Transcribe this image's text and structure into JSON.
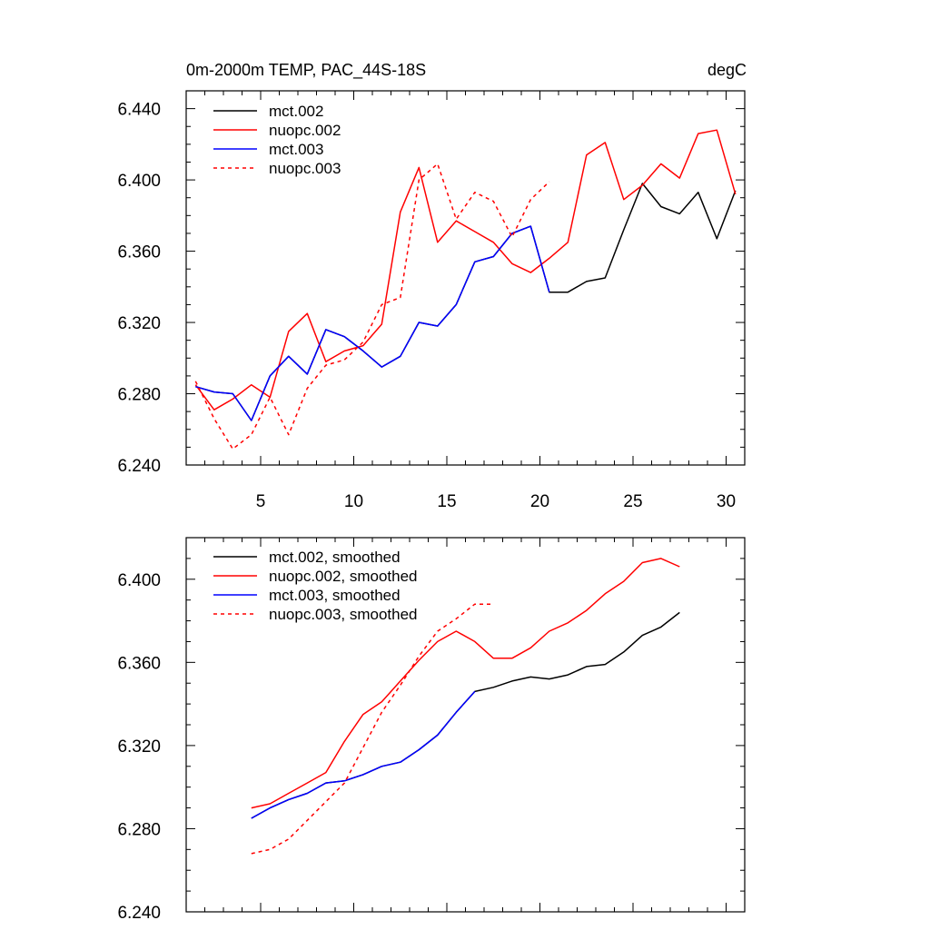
{
  "chart_data": [
    {
      "type": "line",
      "title": "0m-2000m TEMP, PAC_44S-18S",
      "units": "degC",
      "xlim": [
        1,
        31
      ],
      "ylim": [
        6.24,
        6.45
      ],
      "x_ticks": [
        5,
        10,
        15,
        20,
        25,
        30
      ],
      "y_ticks": [
        6.24,
        6.28,
        6.32,
        6.36,
        6.4,
        6.44
      ],
      "y_tick_labels": [
        "6.240",
        "6.280",
        "6.320",
        "6.360",
        "6.400",
        "6.440"
      ],
      "grid": false,
      "legend_position": "top-left",
      "series": [
        {
          "name": "mct.002",
          "color": "#000000",
          "dash": false,
          "x": [
            1.5,
            2.5,
            3.5,
            4.5,
            5.5,
            6.5,
            7.5,
            8.5,
            9.5,
            10.5,
            11.5,
            12.5,
            13.5,
            14.5,
            15.5,
            16.5,
            17.5,
            18.5,
            19.5,
            20.5,
            21.5,
            22.5,
            23.5,
            24.5,
            25.5,
            26.5,
            27.5,
            28.5,
            29.5,
            30.5
          ],
          "y": [
            6.284,
            6.281,
            6.28,
            6.265,
            6.29,
            6.301,
            6.291,
            6.316,
            6.312,
            6.304,
            6.295,
            6.301,
            6.32,
            6.318,
            6.33,
            6.354,
            6.357,
            6.37,
            6.374,
            6.337,
            6.337,
            6.343,
            6.345,
            6.372,
            6.398,
            6.385,
            6.381,
            6.393,
            6.367,
            6.394
          ]
        },
        {
          "name": "nuopc.002",
          "color": "#ff0000",
          "dash": false,
          "x": [
            1.5,
            2.5,
            3.5,
            4.5,
            5.5,
            6.5,
            7.5,
            8.5,
            9.5,
            10.5,
            11.5,
            12.5,
            13.5,
            14.5,
            15.5,
            16.5,
            17.5,
            18.5,
            19.5,
            20.5,
            21.5,
            22.5,
            23.5,
            24.5,
            25.5,
            26.5,
            27.5,
            28.5,
            29.5,
            30.5
          ],
          "y": [
            6.285,
            6.271,
            6.277,
            6.285,
            6.278,
            6.315,
            6.325,
            6.298,
            6.304,
            6.307,
            6.319,
            6.382,
            6.407,
            6.365,
            6.377,
            6.371,
            6.365,
            6.353,
            6.348,
            6.356,
            6.365,
            6.414,
            6.421,
            6.389,
            6.397,
            6.409,
            6.401,
            6.426,
            6.428,
            6.392
          ]
        },
        {
          "name": "mct.003",
          "color": "#0000ff",
          "dash": false,
          "x": [
            1.5,
            2.5,
            3.5,
            4.5,
            5.5,
            6.5,
            7.5,
            8.5,
            9.5,
            10.5,
            11.5,
            12.5,
            13.5,
            14.5,
            15.5,
            16.5,
            17.5,
            18.5,
            19.5,
            20.5
          ],
          "y": [
            6.284,
            6.281,
            6.28,
            6.265,
            6.29,
            6.301,
            6.291,
            6.316,
            6.312,
            6.304,
            6.295,
            6.301,
            6.32,
            6.318,
            6.33,
            6.354,
            6.357,
            6.37,
            6.374,
            6.337
          ]
        },
        {
          "name": "nuopc.003",
          "color": "#ff0000",
          "dash": true,
          "x": [
            1.5,
            2.5,
            3.5,
            4.5,
            5.5,
            6.5,
            7.5,
            8.5,
            9.5,
            10.5,
            11.5,
            12.5,
            13.5,
            14.5,
            15.5,
            16.5,
            17.5,
            18.5,
            19.5,
            20.5
          ],
          "y": [
            6.287,
            6.266,
            6.249,
            6.257,
            6.278,
            6.257,
            6.283,
            6.296,
            6.299,
            6.309,
            6.33,
            6.334,
            6.4,
            6.409,
            6.378,
            6.393,
            6.388,
            6.368,
            6.389,
            6.399
          ]
        }
      ]
    },
    {
      "type": "line",
      "title": "",
      "xlim": [
        1,
        31
      ],
      "ylim": [
        6.24,
        6.42
      ],
      "x_ticks": [
        5,
        10,
        15,
        20,
        25,
        30
      ],
      "y_ticks": [
        6.24,
        6.28,
        6.32,
        6.36,
        6.4
      ],
      "y_tick_labels": [
        "6.240",
        "6.280",
        "6.320",
        "6.360",
        "6.400"
      ],
      "grid": false,
      "legend_position": "top-left",
      "series": [
        {
          "name": "mct.002, smoothed",
          "color": "#000000",
          "dash": false,
          "x": [
            4.5,
            5.5,
            6.5,
            7.5,
            8.5,
            9.5,
            10.5,
            11.5,
            12.5,
            13.5,
            14.5,
            15.5,
            16.5,
            17.5,
            18.5,
            19.5,
            20.5,
            21.5,
            22.5,
            23.5,
            24.5,
            25.5,
            26.5,
            27.5
          ],
          "y": [
            6.285,
            6.29,
            6.294,
            6.297,
            6.302,
            6.303,
            6.306,
            6.31,
            6.312,
            6.318,
            6.325,
            6.336,
            6.346,
            6.348,
            6.351,
            6.353,
            6.352,
            6.354,
            6.358,
            6.359,
            6.365,
            6.373,
            6.377,
            6.384
          ]
        },
        {
          "name": "nuopc.002, smoothed",
          "color": "#ff0000",
          "dash": false,
          "x": [
            4.5,
            5.5,
            6.5,
            7.5,
            8.5,
            9.5,
            10.5,
            11.5,
            12.5,
            13.5,
            14.5,
            15.5,
            16.5,
            17.5,
            18.5,
            19.5,
            20.5,
            21.5,
            22.5,
            23.5,
            24.5,
            25.5,
            26.5,
            27.5
          ],
          "y": [
            6.29,
            6.292,
            6.297,
            6.302,
            6.307,
            6.322,
            6.335,
            6.341,
            6.351,
            6.361,
            6.37,
            6.375,
            6.37,
            6.362,
            6.362,
            6.367,
            6.375,
            6.379,
            6.385,
            6.393,
            6.399,
            6.408,
            6.41,
            6.406
          ]
        },
        {
          "name": "mct.003, smoothed",
          "color": "#0000ff",
          "dash": false,
          "x": [
            4.5,
            5.5,
            6.5,
            7.5,
            8.5,
            9.5,
            10.5,
            11.5,
            12.5,
            13.5,
            14.5,
            15.5,
            16.5
          ],
          "y": [
            6.285,
            6.29,
            6.294,
            6.297,
            6.302,
            6.303,
            6.306,
            6.31,
            6.312,
            6.318,
            6.325,
            6.336,
            6.346
          ]
        },
        {
          "name": "nuopc.003, smoothed",
          "color": "#ff0000",
          "dash": true,
          "x": [
            4.5,
            5.5,
            6.5,
            7.5,
            8.5,
            9.5,
            10.5,
            11.5,
            12.5,
            13.5,
            14.5,
            15.5,
            16.5,
            17.5
          ],
          "y": [
            6.268,
            6.27,
            6.275,
            6.284,
            6.293,
            6.302,
            6.319,
            6.336,
            6.349,
            6.363,
            6.375,
            6.381,
            6.388,
            6.388
          ]
        }
      ]
    }
  ]
}
